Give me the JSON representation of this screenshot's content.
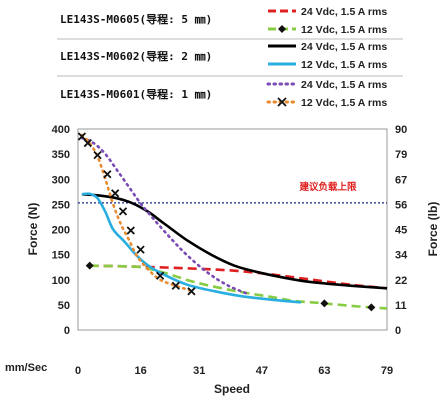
{
  "legend": {
    "groups": [
      {
        "model": "LE143S-M0605(导程: 5 ㎜)",
        "entries": [
          {
            "label": "24 Vdc, 1.5 A rms"
          },
          {
            "label": "12 Vdc, 1.5 A rms"
          }
        ]
      },
      {
        "model": "LE143S-M0602(导程: 2 ㎜)",
        "entries": [
          {
            "label": "24 Vdc, 1.5 A rms"
          },
          {
            "label": "12 Vdc, 1.5 A rms"
          }
        ]
      },
      {
        "model": "LE143S-M0601(导程: 1 ㎜)",
        "entries": [
          {
            "label": "24 Vdc, 1.5 A rms"
          },
          {
            "label": "12 Vdc, 1.5 A rms"
          }
        ]
      }
    ]
  },
  "chart_data": {
    "type": "line",
    "xlabel": "Speed",
    "xunit_label": "mm/Sec",
    "ylabel": "Force (N)",
    "y2label": "Force (lb)",
    "x_ticks": [
      "0",
      "16",
      "31",
      "47",
      "63",
      "79"
    ],
    "x_tick_values": [
      0,
      16,
      31,
      47,
      63,
      79
    ],
    "y_ticks": [
      "0",
      "50",
      "100",
      "150",
      "200",
      "250",
      "300",
      "350",
      "400"
    ],
    "y_tick_values": [
      0,
      50,
      100,
      150,
      200,
      250,
      300,
      350,
      400
    ],
    "y2_ticks": [
      "0",
      "11",
      "22",
      "34",
      "45",
      "56",
      "67",
      "79",
      "90"
    ],
    "xlim": [
      0,
      79
    ],
    "ylim": [
      0,
      400
    ],
    "grid": false,
    "reference_line": {
      "y": 253,
      "label": "建议负载上限",
      "color": "#1a2a8c",
      "label_color": "#e02020"
    },
    "series": [
      {
        "name": "LE143S-M0605 24 Vdc, 1.5 A rms",
        "color": "#e02020",
        "dash": "dashed",
        "marker": "none",
        "x": [
          3,
          10,
          20,
          30,
          40,
          50,
          60,
          70,
          79
        ],
        "y": [
          128,
          127,
          125,
          122,
          118,
          110,
          100,
          90,
          83
        ]
      },
      {
        "name": "LE143S-M0605 12 Vdc, 1.5 A rms",
        "color": "#88cc44",
        "dash": "dashed",
        "marker": "diamond",
        "x": [
          3,
          10,
          16,
          22,
          30,
          40,
          50,
          55,
          60,
          63,
          70,
          75,
          79
        ],
        "y": [
          128,
          127,
          125,
          114,
          95,
          78,
          65,
          58,
          55,
          53,
          48,
          45,
          43
        ],
        "marker_x": [
          3,
          63,
          75
        ],
        "marker_y": [
          128,
          53,
          45
        ]
      },
      {
        "name": "LE143S-M0602 24 Vdc, 1.5 A rms",
        "color": "#000000",
        "dash": "solid",
        "marker": "none",
        "x": [
          1,
          5,
          10,
          14,
          18,
          22,
          28,
          34,
          40,
          46,
          52,
          58,
          64,
          70,
          79
        ],
        "y": [
          270,
          268,
          262,
          252,
          235,
          212,
          178,
          150,
          128,
          115,
          105,
          97,
          92,
          88,
          83
        ]
      },
      {
        "name": "LE143S-M0602 12 Vdc, 1.5 A rms",
        "color": "#29aee0",
        "dash": "solid",
        "marker": "none",
        "x": [
          1,
          3,
          5,
          7,
          9,
          12,
          15,
          18,
          22,
          28,
          35,
          42,
          50,
          57
        ],
        "y": [
          270,
          271,
          262,
          235,
          200,
          175,
          148,
          128,
          110,
          90,
          77,
          67,
          60,
          55
        ]
      },
      {
        "name": "LE143S-M0601 24 Vdc, 1.5 A rms",
        "color": "#7a4bb5",
        "dash": "dotted",
        "marker": "none",
        "x": [
          1,
          4,
          7,
          10,
          13,
          16,
          20,
          24,
          28,
          33,
          38,
          43
        ],
        "y": [
          382,
          372,
          350,
          318,
          285,
          252,
          215,
          180,
          148,
          115,
          90,
          73
        ]
      },
      {
        "name": "LE143S-M0601 12 Vdc, 1.5 A rms",
        "color": "#e88a30",
        "dash": "dotted",
        "marker": "x",
        "x": [
          1,
          3,
          5,
          7,
          9,
          11,
          13,
          15,
          18,
          21,
          25,
          29
        ],
        "y": [
          388,
          372,
          345,
          300,
          250,
          210,
          180,
          148,
          120,
          100,
          88,
          78
        ],
        "marker_x": [
          1,
          2.5,
          5,
          7.5,
          9.5,
          11.5,
          13.5,
          16,
          21,
          25,
          29
        ],
        "marker_y": [
          385,
          372,
          348,
          310,
          272,
          236,
          198,
          160,
          108,
          88,
          77
        ]
      }
    ]
  }
}
